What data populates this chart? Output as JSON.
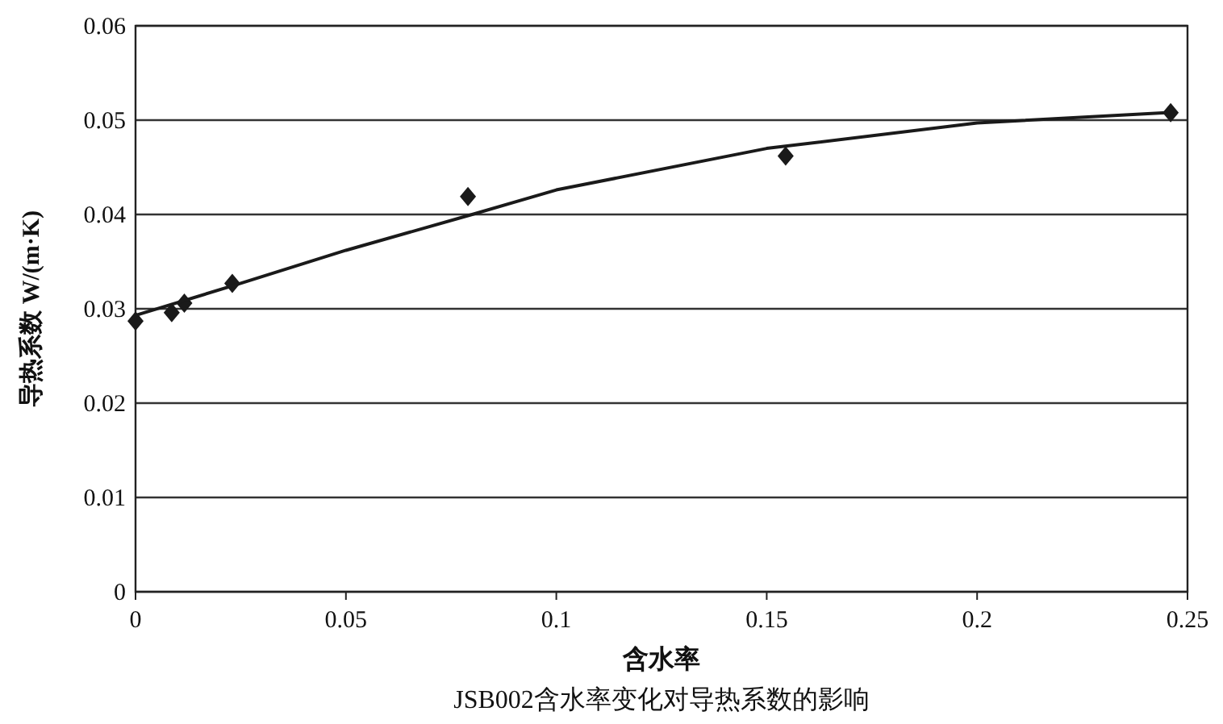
{
  "chart_data": {
    "type": "scatter",
    "xlabel": "含水率",
    "ylabel": "导热系数  W/(m·K)",
    "annotations": [
      "JSB002含水率变化对导热系数的影响"
    ],
    "xlim": [
      0,
      0.25
    ],
    "xticks": [
      0,
      0.05,
      0.1,
      0.15,
      0.2,
      0.25
    ],
    "ylim": [
      0,
      0.06
    ],
    "yticks": [
      0,
      0.01,
      0.02,
      0.03,
      0.04,
      0.05,
      0.06
    ],
    "grid": "y",
    "series": [
      {
        "marker": "diamond",
        "color": "#1a1a1a",
        "x": [
          0,
          0.0086,
          0.0116,
          0.023,
          0.079,
          0.1545,
          0.246
        ],
        "values": [
          0.0287,
          0.0296,
          0.0306,
          0.0327,
          0.0419,
          0.0462,
          0.0508
        ]
      },
      {
        "type": "line",
        "line_style": "solid",
        "color": "#1a1a1a",
        "x": [
          0,
          0.025,
          0.05,
          0.08,
          0.1,
          0.15,
          0.2,
          0.245
        ],
        "values": [
          0.0293,
          0.0327,
          0.0362,
          0.04,
          0.0426,
          0.047,
          0.0497,
          0.0508
        ]
      }
    ]
  }
}
